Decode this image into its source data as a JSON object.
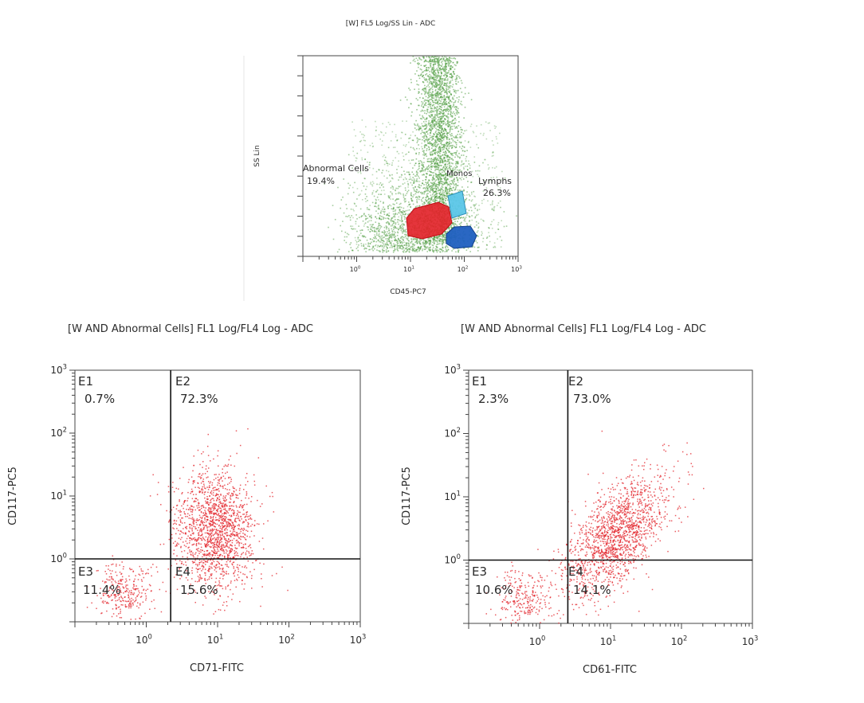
{
  "chart_data": [
    {
      "type": "scatter",
      "title": "[W] FL5 Log/SS Lin - ADC",
      "xlabel": "CD45-PC7",
      "ylabel": "SS Lin",
      "x_scale": "log",
      "xlim": [
        0.1,
        1000
      ],
      "x_ticks": [
        {
          "value": 1,
          "label": "10",
          "exp": "0"
        },
        {
          "value": 10,
          "label": "10",
          "exp": "1"
        },
        {
          "value": 100,
          "label": "10",
          "exp": "2"
        },
        {
          "value": 1000,
          "label": "10",
          "exp": "3"
        }
      ],
      "y_scale": "linear",
      "ylim": [
        0,
        1024
      ],
      "grid": false,
      "colors": {
        "events": "#4a9a3c",
        "abnormal": "#e3242b",
        "lymphs": "#1f5fc0",
        "monos": "#5bc6e8"
      },
      "gates": [
        {
          "name": "Abnormal Cells",
          "percent": "19.4%",
          "color": "#e3242b"
        },
        {
          "name": "Monos",
          "percent": "",
          "color": "#5bc6e8"
        },
        {
          "name": "Lymphs",
          "percent": "26.3%",
          "color": "#1f5fc0"
        }
      ]
    },
    {
      "type": "scatter",
      "title": "[W AND Abnormal Cells] FL1 Log/FL4 Log - ADC",
      "xlabel": "CD71-FITC",
      "ylabel": "CD117-PC5",
      "x_scale": "log",
      "y_scale": "log",
      "xlim": [
        0.1,
        1000
      ],
      "ylim": [
        0.1,
        1000
      ],
      "x_ticks": [
        {
          "value": 1,
          "label": "10",
          "exp": "0"
        },
        {
          "value": 10,
          "label": "10",
          "exp": "1"
        },
        {
          "value": 100,
          "label": "10",
          "exp": "2"
        },
        {
          "value": 1000,
          "label": "10",
          "exp": "3"
        }
      ],
      "y_ticks": [
        {
          "value": 1,
          "label": "10",
          "exp": "0"
        },
        {
          "value": 10,
          "label": "10",
          "exp": "1"
        },
        {
          "value": 100,
          "label": "10",
          "exp": "2"
        },
        {
          "value": 1000,
          "label": "10",
          "exp": "3"
        }
      ],
      "quadrant_cut": {
        "x": 2.2,
        "y": 1
      },
      "quadrants": [
        {
          "id": "E1",
          "percent": "0.7%"
        },
        {
          "id": "E2",
          "percent": "72.3%"
        },
        {
          "id": "E3",
          "percent": "11.4%"
        },
        {
          "id": "E4",
          "percent": "15.6%"
        }
      ],
      "clusters": [
        {
          "x": 9,
          "y": 3,
          "count": 1600
        },
        {
          "x": 0.5,
          "y": 0.3,
          "count": 300
        }
      ],
      "color": "#e3242b"
    },
    {
      "type": "scatter",
      "title": "[W AND Abnormal Cells] FL1 Log/FL4 Log - ADC",
      "xlabel": "CD61-FITC",
      "ylabel": "CD117-PC5",
      "x_scale": "log",
      "y_scale": "log",
      "xlim": [
        0.1,
        1000
      ],
      "ylim": [
        0.1,
        1000
      ],
      "x_ticks": [
        {
          "value": 1,
          "label": "10",
          "exp": "0"
        },
        {
          "value": 10,
          "label": "10",
          "exp": "1"
        },
        {
          "value": 100,
          "label": "10",
          "exp": "2"
        },
        {
          "value": 1000,
          "label": "10",
          "exp": "3"
        }
      ],
      "y_ticks": [
        {
          "value": 1,
          "label": "10",
          "exp": "0"
        },
        {
          "value": 10,
          "label": "10",
          "exp": "1"
        },
        {
          "value": 100,
          "label": "10",
          "exp": "2"
        },
        {
          "value": 1000,
          "label": "10",
          "exp": "3"
        }
      ],
      "quadrant_cut": {
        "x": 2.5,
        "y": 1
      },
      "quadrants": [
        {
          "id": "E1",
          "percent": "2.3%"
        },
        {
          "id": "E2",
          "percent": "73.0%"
        },
        {
          "id": "E3",
          "percent": "10.6%"
        },
        {
          "id": "E4",
          "percent": "14.1%"
        }
      ],
      "clusters": [
        {
          "x": 12,
          "y": 2.5,
          "count": 1600
        },
        {
          "x": 0.6,
          "y": 0.25,
          "count": 260
        }
      ],
      "color": "#e3242b"
    }
  ]
}
